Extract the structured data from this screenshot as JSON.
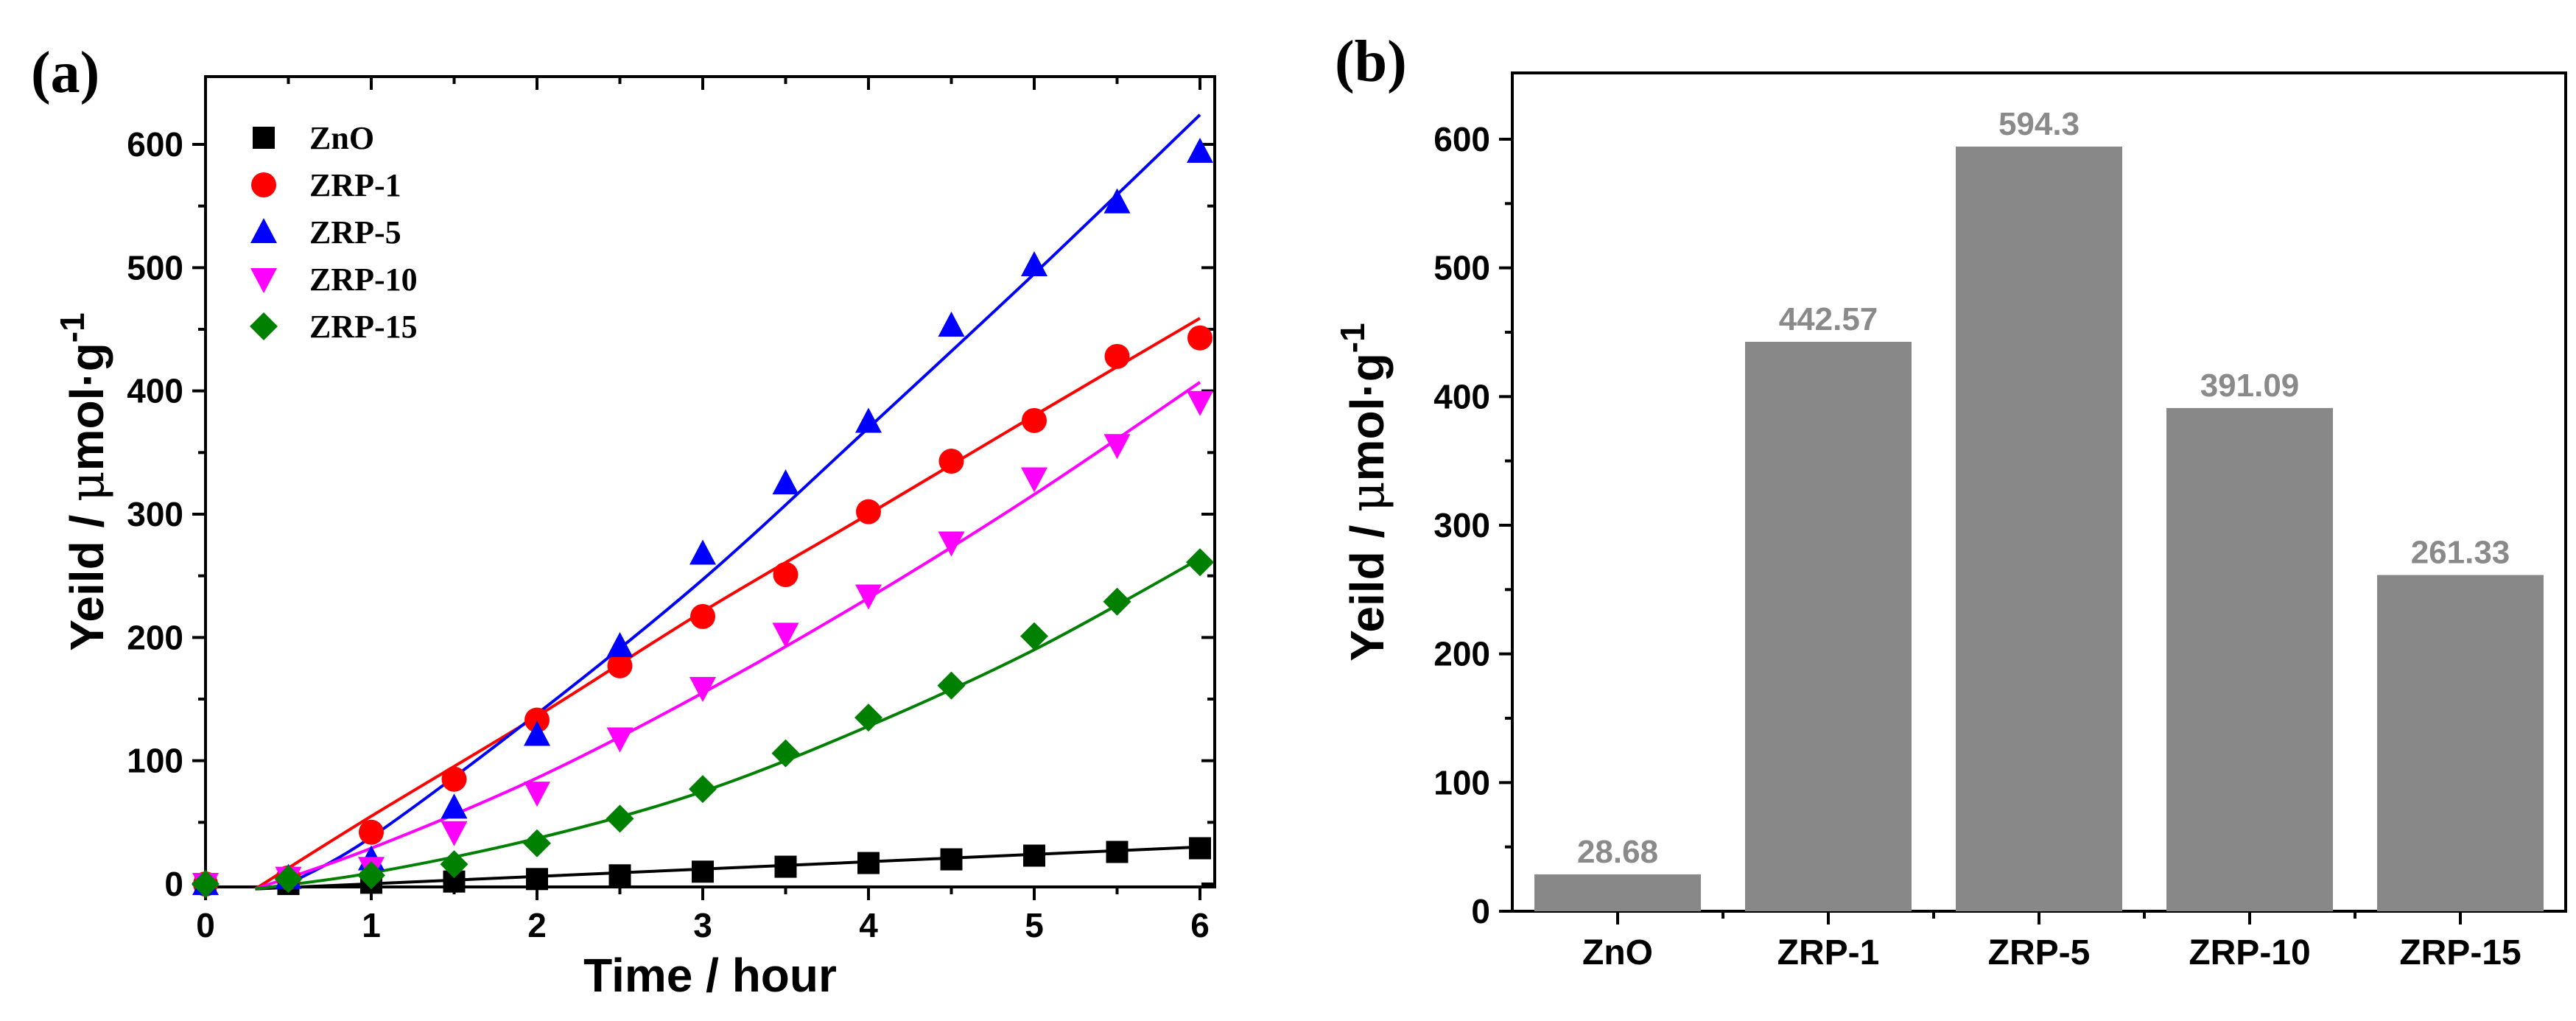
{
  "chart_data": [
    {
      "panel_label": "(a)",
      "type": "scatter",
      "title": "",
      "xlabel": "Time / hour",
      "ylabel_main": "Yeild / ",
      "ylabel_mu": "μ",
      "ylabel_unit": "mol·g",
      "ylabel_sup": "-1",
      "xlim": [
        0,
        6.1
      ],
      "ylim": [
        0,
        650
      ],
      "xticks": [
        "0",
        "1",
        "2",
        "3",
        "4",
        "5",
        "6"
      ],
      "yticks": [
        "0",
        "100",
        "200",
        "300",
        "400",
        "500",
        "600"
      ],
      "legend_position": "top-left",
      "x": [
        0,
        0.5,
        1,
        1.5,
        2,
        2.5,
        3,
        3.5,
        4,
        4.5,
        5,
        5.5,
        6
      ],
      "series": [
        {
          "name": "ZnO",
          "marker": "square",
          "color": "#000000",
          "values": [
            0,
            0,
            1,
            2,
            4,
            7,
            10,
            14,
            17,
            20,
            23,
            26,
            29
          ],
          "fit": [
            [
              0.3,
              -4
            ],
            [
              6,
              30
            ]
          ]
        },
        {
          "name": "ZRP-1",
          "marker": "circle",
          "color": "#ff0000",
          "values": [
            0,
            5,
            42,
            85,
            133,
            177,
            217,
            251,
            302,
            343,
            376,
            428,
            443
          ],
          "fit": [
            [
              0.3,
              -4
            ],
            [
              1,
              55
            ],
            [
              2,
              136
            ],
            [
              3,
              221
            ],
            [
              4,
              300
            ],
            [
              5,
              380
            ],
            [
              6,
              459
            ]
          ]
        },
        {
          "name": "ZRP-5",
          "marker": "triangle-up",
          "color": "#0000ff",
          "values": [
            0,
            5,
            20,
            62,
            121,
            193,
            268,
            325,
            375,
            453,
            502,
            553,
            594
          ],
          "fit": [
            [
              0.5,
              0
            ],
            [
              1,
              38
            ],
            [
              2,
              138
            ],
            [
              3,
              247
            ],
            [
              4,
              370
            ],
            [
              5,
              495
            ],
            [
              6,
              624
            ]
          ]
        },
        {
          "name": "ZRP-10",
          "marker": "triangle-down",
          "color": "#ff00ff",
          "values": [
            0,
            5,
            13,
            42,
            74,
            118,
            159,
            203,
            234,
            277,
            329,
            356,
            391
          ],
          "fit": [
            [
              0.3,
              -4
            ],
            [
              1,
              29
            ],
            [
              2,
              86
            ],
            [
              3,
              155
            ],
            [
              4,
              232
            ],
            [
              5,
              316
            ],
            [
              6,
              407
            ]
          ]
        },
        {
          "name": "ZRP-15",
          "marker": "diamond",
          "color": "#008000",
          "values": [
            0,
            4,
            7,
            16,
            33,
            53,
            77,
            106,
            135,
            161,
            201,
            229,
            261
          ],
          "fit": [
            [
              0.3,
              -4
            ],
            [
              1,
              9
            ],
            [
              2,
              37
            ],
            [
              3,
              75
            ],
            [
              4,
              128
            ],
            [
              5,
              190
            ],
            [
              6,
              264
            ]
          ]
        }
      ]
    },
    {
      "panel_label": "(b)",
      "type": "bar",
      "title": "",
      "xlabel": "",
      "ylabel_main": "Yeild / ",
      "ylabel_mu": "μ",
      "ylabel_unit": "mol·g",
      "ylabel_sup": "-1",
      "ylim": [
        0,
        650
      ],
      "yticks": [
        "0",
        "100",
        "200",
        "300",
        "400",
        "500",
        "600"
      ],
      "categories": [
        "ZnO",
        "ZRP-1",
        "ZRP-5",
        "ZRP-10",
        "ZRP-15"
      ],
      "values": [
        28.68,
        442.57,
        594.3,
        391.09,
        261.33
      ],
      "value_labels": [
        "28.68",
        "442.57",
        "594.3",
        "391.09",
        "261.33"
      ],
      "bar_color": "#888888",
      "value_label_color": "#8a8a8a"
    }
  ]
}
